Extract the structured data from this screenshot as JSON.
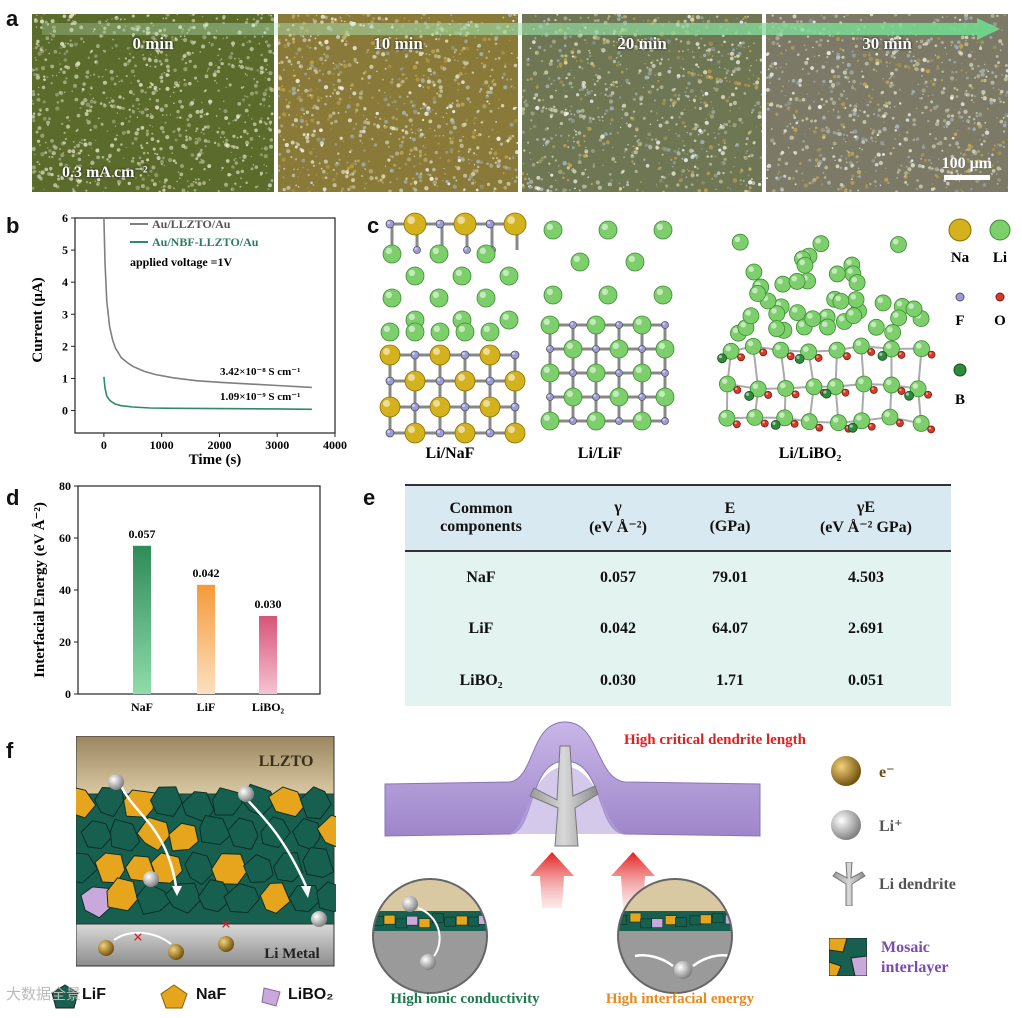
{
  "panel_labels": {
    "a": "a",
    "b": "b",
    "c": "c",
    "d": "d",
    "e": "e",
    "f": "f"
  },
  "panel_a": {
    "times": [
      "0 min",
      "10 min",
      "20 min",
      "30 min"
    ],
    "current_density": "0.3 mA cm⁻²",
    "scale_bar": "100 μm",
    "tints": [
      "#5a6b2c",
      "#8a7a3a",
      "#6f7654",
      "#7c7a66"
    ]
  },
  "chart_data": {
    "type": "line",
    "xlabel": "Time (s)",
    "ylabel": "Current (μA)",
    "xlim": [
      -500,
      4000
    ],
    "ylim": [
      -0.7,
      6
    ],
    "xticks": [
      0,
      1000,
      2000,
      3000,
      4000
    ],
    "yticks": [
      0,
      1,
      2,
      3,
      4,
      5,
      6
    ],
    "legend_position": "top-left",
    "note": "applied voltage =1V",
    "series": [
      {
        "name": "Au/LLZTO/Au",
        "color": "#7f7f7f",
        "x": [
          0,
          20,
          50,
          100,
          150,
          200,
          300,
          400,
          500,
          700,
          900,
          1200,
          1600,
          2000,
          2500,
          3000,
          3600
        ],
        "y": [
          6.0,
          4.6,
          3.4,
          2.6,
          2.2,
          1.95,
          1.65,
          1.5,
          1.38,
          1.22,
          1.12,
          1.02,
          0.93,
          0.88,
          0.83,
          0.78,
          0.72
        ],
        "annotation": "3.42×10⁻⁸ S cm⁻¹"
      },
      {
        "name": "Au/NBF-LLZTO/Au",
        "color": "#2e8b6a",
        "x": [
          0,
          20,
          50,
          100,
          150,
          200,
          300,
          500,
          800,
          1200,
          2000,
          3000,
          3600
        ],
        "y": [
          1.05,
          0.7,
          0.45,
          0.32,
          0.25,
          0.2,
          0.15,
          0.11,
          0.08,
          0.07,
          0.06,
          0.05,
          0.04
        ],
        "annotation": "1.09×10⁻⁹ S cm⁻¹"
      }
    ]
  },
  "panel_c": {
    "captions": [
      "Li/NaF",
      "Li/LiF",
      "Li/LiBO₂"
    ],
    "legend": [
      {
        "label": "Na",
        "color": "#d4b21e"
      },
      {
        "label": "Li",
        "color": "#7ccf6a"
      },
      {
        "label": "F",
        "color": "#9b9bd9"
      },
      {
        "label": "O",
        "color": "#d83a2a"
      },
      {
        "label": "B",
        "color": "#2f8a3c"
      }
    ]
  },
  "panel_d": {
    "type": "bar",
    "ylabel": "Interfacial Energy (eV Å⁻²)",
    "categories": [
      "NaF",
      "LiF",
      "LiBO₂"
    ],
    "values": [
      57,
      42,
      30
    ],
    "value_labels": [
      "0.057",
      "0.042",
      "0.030"
    ],
    "ylim": [
      0,
      80
    ],
    "yticks": [
      0,
      20,
      40,
      60,
      80
    ],
    "colors": [
      "#2e8b57",
      "#f59a3a",
      "#d6547a"
    ]
  },
  "panel_e": {
    "headers": [
      [
        "Common",
        "components"
      ],
      [
        "γ",
        "(eV Å⁻²)"
      ],
      [
        "E",
        "(GPa)"
      ],
      [
        "γE",
        "(eV Å⁻² GPa)"
      ]
    ],
    "rows": [
      [
        "NaF",
        "0.057",
        "79.01",
        "4.503"
      ],
      [
        "LiF",
        "0.042",
        "64.07",
        "2.691"
      ],
      [
        "LiBO₂",
        "0.030",
        "1.71",
        "0.051"
      ]
    ]
  },
  "panel_f": {
    "top_layer": "LLZTO",
    "bottom_layer": "Li Metal",
    "bottom_legend": [
      "LiF",
      "NaF",
      "LiBO₂"
    ],
    "critical_label": "High critical dendrite length",
    "ionic_label": "High ionic conductivity",
    "energy_label": "High interfacial energy",
    "legend": [
      {
        "label": "e⁻",
        "kind": "electron"
      },
      {
        "label": "Li⁺",
        "kind": "ion"
      },
      {
        "label": "Li dendrite",
        "kind": "dendrite"
      },
      {
        "label": "Mosaic interlayer",
        "kind": "mosaic"
      }
    ],
    "watermark": "大数据全景"
  }
}
